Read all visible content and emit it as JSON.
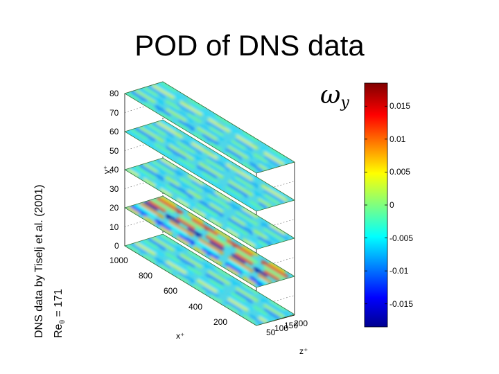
{
  "title": "POD of DNS data",
  "side_notes": {
    "source": "DNS data by Tiselj et al. (2001)",
    "reynolds_base": "Re",
    "reynolds_sub": "θ",
    "reynolds_value": " = 171"
  },
  "plot": {
    "y_ticks": [
      "80",
      "70",
      "60",
      "50",
      "40",
      "30",
      "20",
      "10",
      "0"
    ],
    "x_ticks": [
      "1000",
      "800",
      "600",
      "400",
      "200"
    ],
    "z_ticks": [
      "50",
      "100",
      "150",
      "200"
    ],
    "y_label": "y⁺",
    "x_label": "x⁺",
    "z_label": "z⁺",
    "slice_levels": [
      0,
      20,
      40,
      60,
      80
    ],
    "colors": {
      "positive": "#b40000",
      "negative": "#00008f",
      "mid": "#00c8ff",
      "slice_base": "#4fd6e8"
    }
  },
  "colorbar": {
    "label_symbol": "ω",
    "label_sub": "y",
    "ticks": [
      "0.015",
      "0.01",
      "0.005",
      "0",
      "-0.005",
      "-0.01",
      "-0.015"
    ]
  }
}
